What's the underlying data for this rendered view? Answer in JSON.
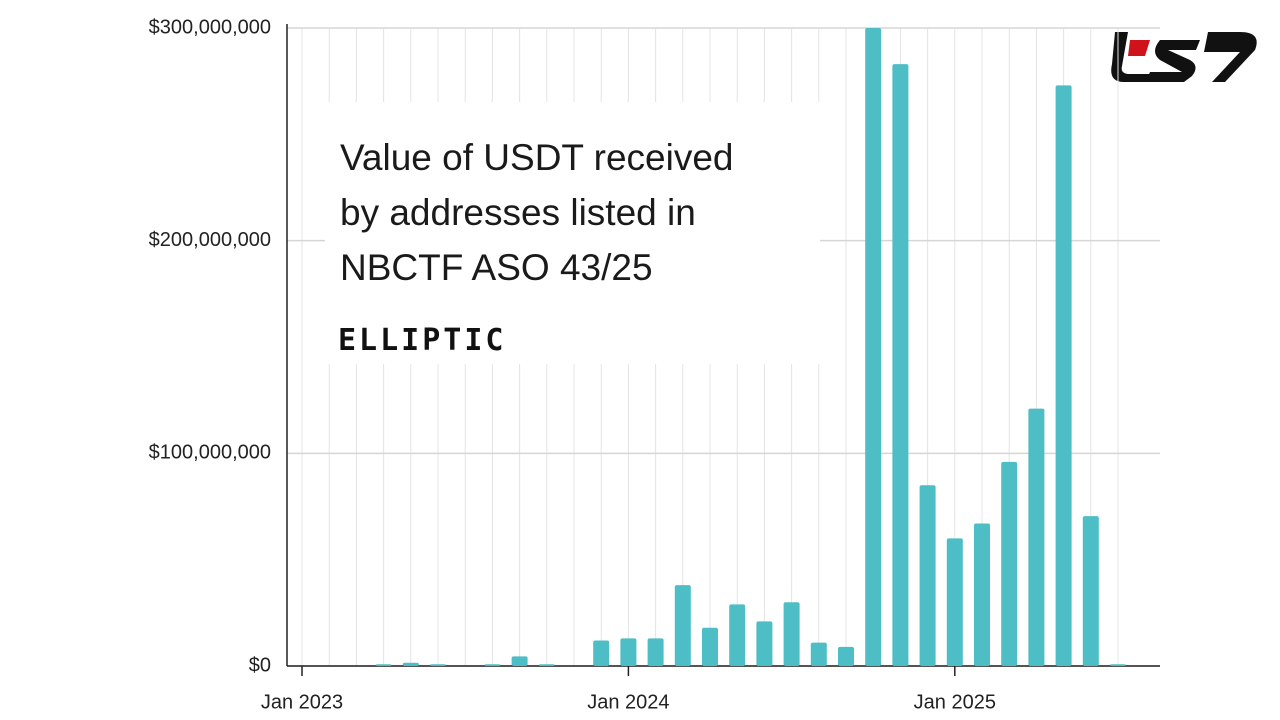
{
  "chart_data": {
    "type": "bar",
    "title": [
      "Value of USDT received",
      "by addresses listed in",
      "NBCTF ASO 43/25"
    ],
    "brand": "ELLIPTIC",
    "categories": [
      "Jan 2023",
      null,
      null,
      null,
      null,
      null,
      null,
      null,
      null,
      null,
      null,
      null,
      "Jan 2024",
      null,
      null,
      null,
      null,
      null,
      null,
      null,
      null,
      null,
      null,
      null,
      "Jan 2025",
      null,
      null,
      null,
      null,
      null,
      null
    ],
    "values": [
      0,
      0,
      0,
      800000,
      1500000,
      800000,
      0,
      800000,
      4500000,
      800000,
      0,
      12000000,
      13000000,
      13000000,
      38000000,
      18000000,
      29000000,
      21000000,
      30000000,
      11000000,
      9000000,
      300000000,
      283000000,
      85000000,
      60000000,
      67000000,
      96000000,
      121000000,
      273000000,
      70500000,
      800000
    ],
    "color": "#4dbec6",
    "ylim": [
      0,
      300000000
    ],
    "yticks": [
      {
        "value": 0,
        "label": "$0"
      },
      {
        "value": 100000000,
        "label": "$100,000,000"
      },
      {
        "value": 200000000,
        "label": "$200,000,000"
      },
      {
        "value": 300000000,
        "label": "$300,000,000"
      }
    ],
    "grid": true
  }
}
